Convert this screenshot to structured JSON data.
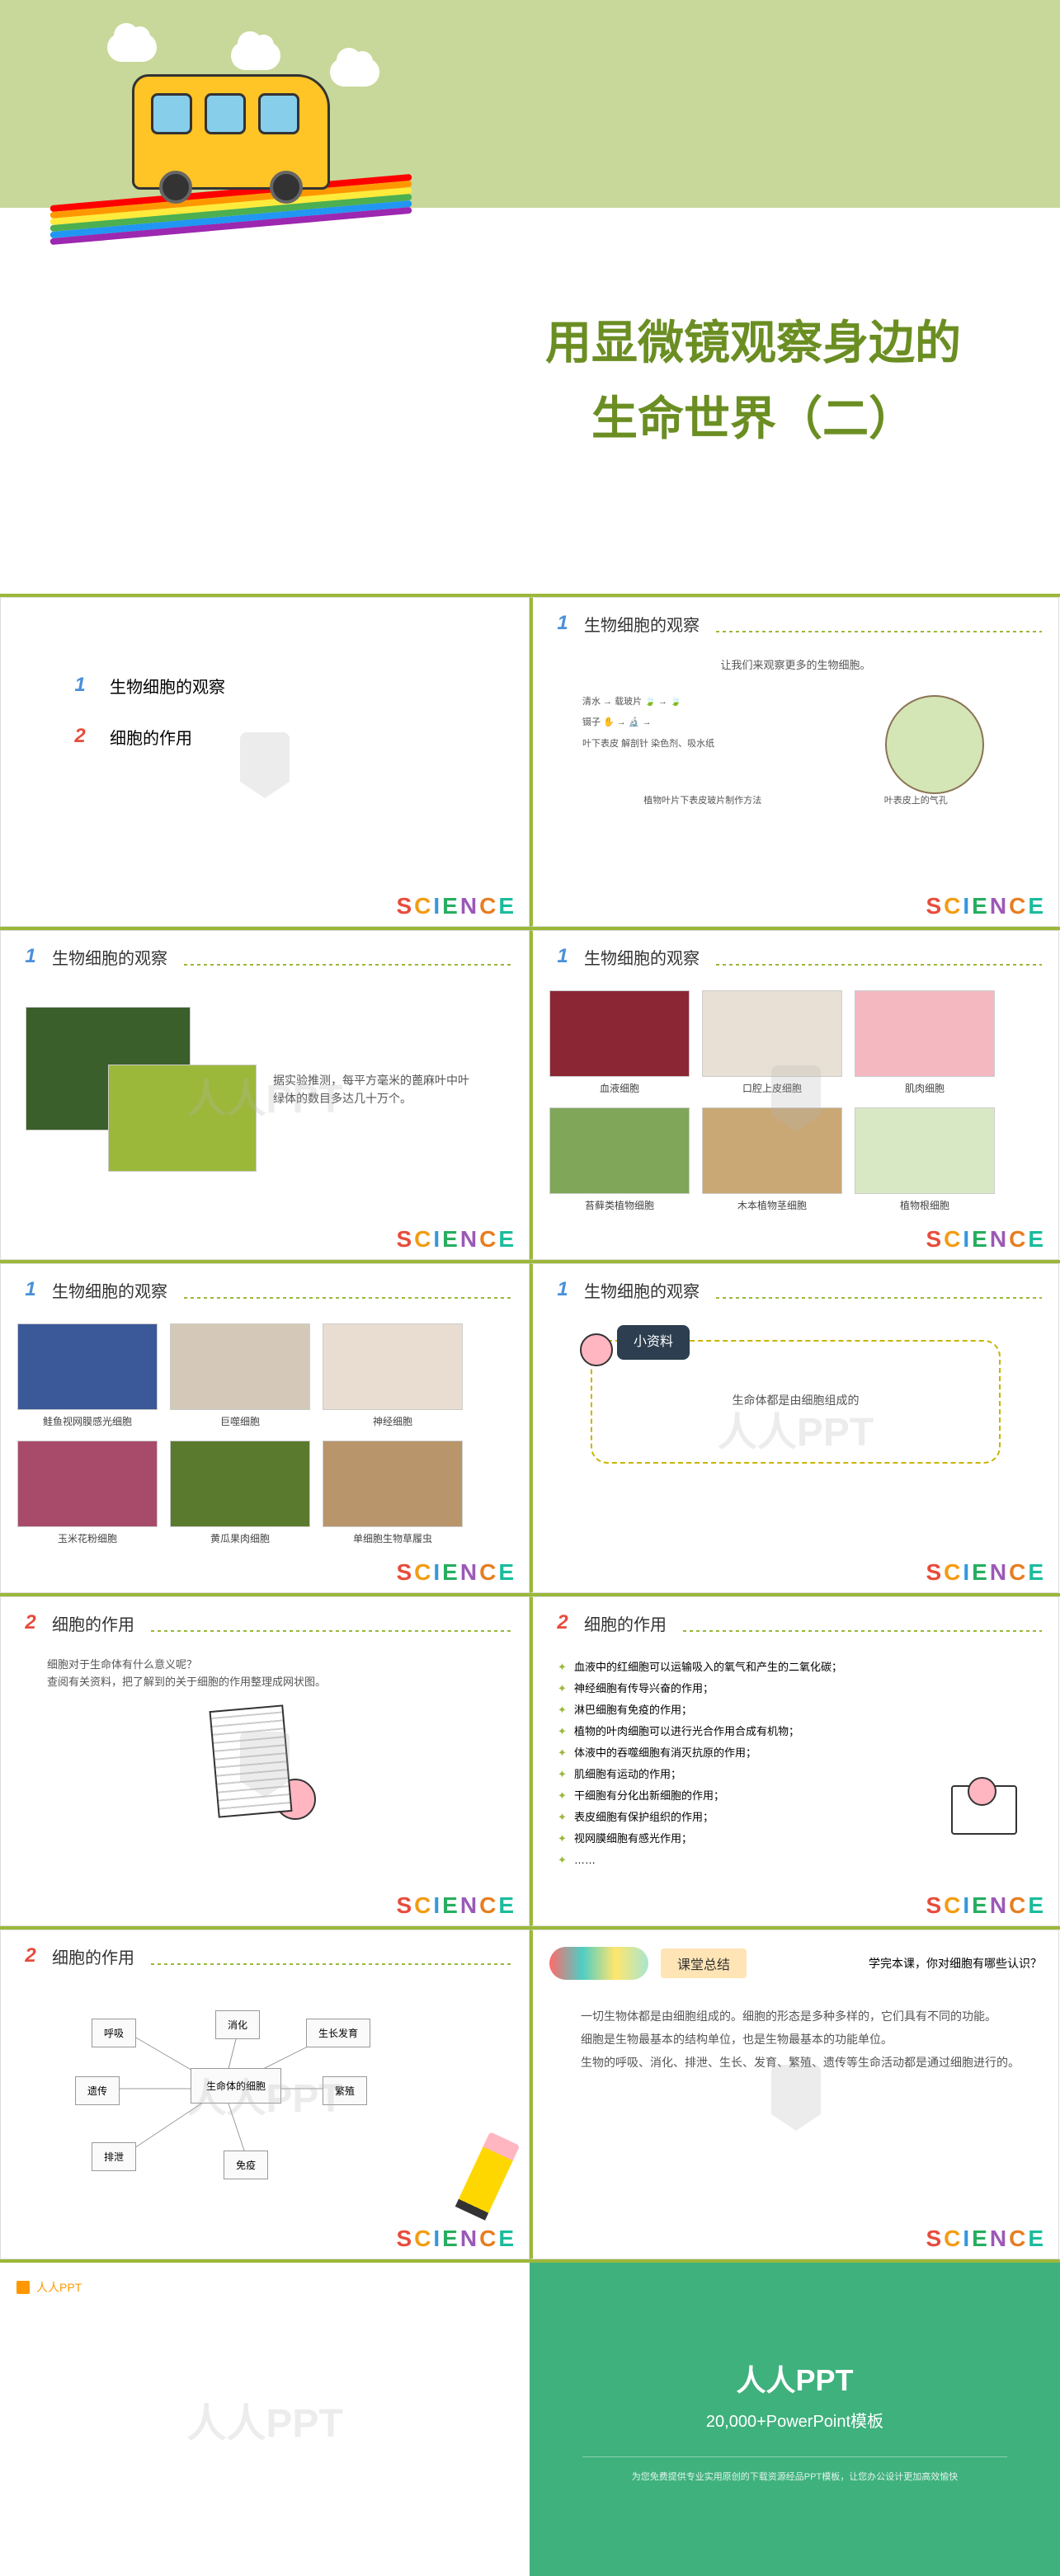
{
  "title": {
    "line1": "用显微镜观察身边的",
    "line2": "生命世界（二）",
    "color": "#6b8e23"
  },
  "rainbow_colors": [
    "#ff0000",
    "#ff9800",
    "#ffeb3b",
    "#4caf50",
    "#2196f3",
    "#9c27b0"
  ],
  "science_letters": [
    "S",
    "C",
    "I",
    "E",
    "N",
    "C",
    "E"
  ],
  "science_colors": [
    "#e74c3c",
    "#f39c12",
    "#3498db",
    "#27ae60",
    "#9b59b6",
    "#e67e22",
    "#1abc9c"
  ],
  "watermark": "人人PPT",
  "toc": {
    "item1": "生物细胞的观察",
    "item2": "细胞的作用"
  },
  "slide2": {
    "title": "生物细胞的观察",
    "subtitle": "让我们来观察更多的生物细胞。",
    "labels": {
      "l1": "清水",
      "l2": "载玻片",
      "l3": "镊子",
      "l4": "叶下表皮",
      "l5": "解剖针",
      "l6": "染色剂、吸水纸",
      "method": "植物叶片下表皮玻片制作方法",
      "sample": "叶表皮上的气孔"
    }
  },
  "slide3": {
    "title": "生物细胞的观察",
    "text": "据实验推测，每平方毫米的蓖麻叶中叶绿体的数目多达几十万个。"
  },
  "slide4": {
    "title": "生物细胞的观察",
    "cells": [
      {
        "name": "血液细胞",
        "bg": "#8b2635"
      },
      {
        "name": "口腔上皮细胞",
        "bg": "#e8e0d5"
      },
      {
        "name": "肌肉细胞",
        "bg": "#f4b8c1"
      },
      {
        "name": "苔藓类植物细胞",
        "bg": "#7fa659"
      },
      {
        "name": "木本植物茎细胞",
        "bg": "#c9a876"
      },
      {
        "name": "植物根细胞",
        "bg": "#d9e8c4"
      }
    ]
  },
  "slide5": {
    "title": "生物细胞的观察",
    "cells": [
      {
        "name": "鲑鱼视网膜感光细胞",
        "bg": "#3b5998"
      },
      {
        "name": "巨噬细胞",
        "bg": "#d4c9b8"
      },
      {
        "name": "神经细胞",
        "bg": "#e8ddd0"
      },
      {
        "name": "玉米花粉细胞",
        "bg": "#a84b6b"
      },
      {
        "name": "黄瓜果肉细胞",
        "bg": "#5a7a2e"
      },
      {
        "name": "单细胞生物草履虫",
        "bg": "#b8956a"
      }
    ]
  },
  "slide6": {
    "title": "生物细胞的观察",
    "info_label": "小资料",
    "info_text": "生命体都是由细胞组成的"
  },
  "slide7": {
    "title": "细胞的作用",
    "text1": "细胞对于生命体有什么意义呢？",
    "text2": "查阅有关资料，把了解到的关于细胞的作用整理成网状图。"
  },
  "slide8": {
    "title": "细胞的作用",
    "bullets": [
      "血液中的红细胞可以运输吸入的氧气和产生的二氧化碳；",
      "神经细胞有传导兴奋的作用；",
      "淋巴细胞有免疫的作用；",
      "植物的叶肉细胞可以进行光合作用合成有机物；",
      "体液中的吞噬细胞有消灭抗原的作用；",
      "肌细胞有运动的作用；",
      "干细胞有分化出新细胞的作用；",
      "表皮细胞有保护组织的作用；",
      "视网膜细胞有感光作用；",
      "……"
    ]
  },
  "slide9": {
    "title": "细胞的作用",
    "center": "生命体的细胞",
    "nodes": [
      "呼吸",
      "消化",
      "生长发育",
      "遗传",
      "繁殖",
      "排泄",
      "免疫"
    ]
  },
  "slide10": {
    "summary_label": "课堂总结",
    "question": "学完本课，你对细胞有哪些认识？",
    "p1": "一切生物体都是由细胞组成的。细胞的形态是多种多样的，它们具有不同的功能。",
    "p2": "细胞是生物最基本的结构单位，也是生物最基本的功能单位。",
    "p3": "生物的呼吸、消化、排泄、生长、发育、繁殖、遗传等生命活动都是通过细胞进行的。"
  },
  "banner": {
    "logo": "人人PPT",
    "title": "人人PPT",
    "sub": "20,000+PowerPoint模板",
    "foot": "为您免费提供专业实用原创的下载资源经品PPT模板，让您办公设计更加高效愉快"
  },
  "colors": {
    "green_border": "#9bb83a",
    "bg_green": "#c8d89a",
    "banner_bg": "#3fb17d",
    "title_color": "#6b8e23"
  }
}
